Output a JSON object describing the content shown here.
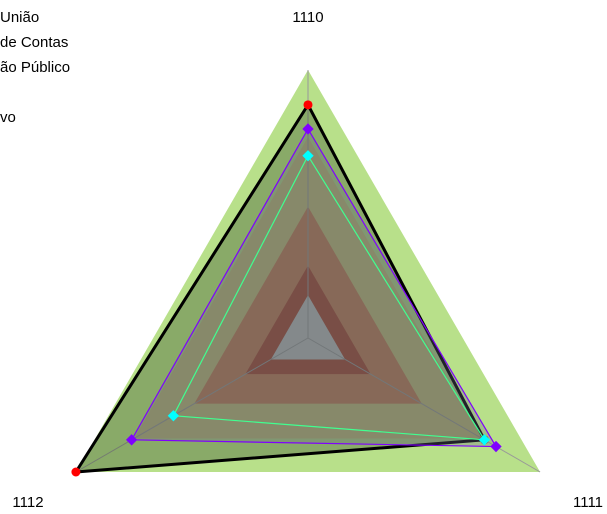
{
  "chart_data": {
    "type": "radar",
    "categories": [
      "1110",
      "1111",
      "1112"
    ],
    "legend_text": [
      "União",
      "de Contas",
      "ão Público",
      "vo"
    ],
    "ylim": [
      0,
      100
    ],
    "bands": [
      {
        "value": 100,
        "color": "#b8e08a"
      },
      {
        "value": 75,
        "color": "#c8c078"
      },
      {
        "value": 49,
        "color": "#c87a50"
      },
      {
        "value": 27,
        "color": "#a8402a"
      },
      {
        "value": 16,
        "color": "#c0c0c0"
      }
    ],
    "series": [
      {
        "color": "#ff0000",
        "line_color": "#000000",
        "fill": "rgba(50,70,40,0.35)",
        "values": [
          87,
          76,
          100
        ]
      },
      {
        "color": "#7f00ff",
        "line_color": "#7f00ff",
        "fill": "rgba(110,110,140,0.3)",
        "values": [
          78,
          81,
          76
        ]
      },
      {
        "color": "#00ffff",
        "line_color": "#40ff90",
        "fill": "none",
        "values": [
          68,
          76,
          58
        ]
      }
    ]
  }
}
